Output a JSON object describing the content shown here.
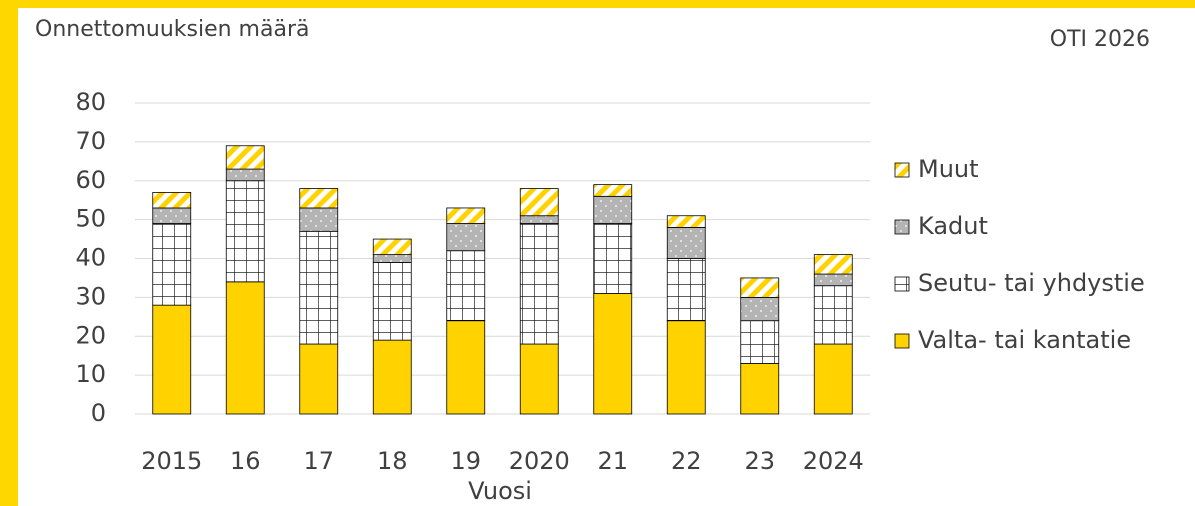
{
  "chart_data": {
    "type": "stacked_bar",
    "title": "Onnettomuuksien määrä",
    "subtitle": "OTI 2026",
    "x_label": "Vuosi",
    "categories": [
      "2015",
      "16",
      "17",
      "18",
      "19",
      "2020",
      "21",
      "22",
      "23",
      "2024"
    ],
    "series": [
      {
        "name": "Valta- tai kantatie",
        "color": "#ffd200",
        "values": [
          28,
          34,
          18,
          19,
          24,
          18,
          31,
          24,
          13,
          18
        ]
      },
      {
        "name": "Seutu- tai yhdystie",
        "color": "#ffffff",
        "values": [
          21,
          26,
          29,
          20,
          18,
          31,
          18,
          16,
          11,
          15
        ]
      },
      {
        "name": "Kadut",
        "color": "#b4b4b4",
        "values": [
          4,
          3,
          6,
          2,
          7,
          2,
          7,
          8,
          6,
          3
        ]
      },
      {
        "name": "Muut",
        "color": "#ffd200",
        "values": [
          4,
          6,
          5,
          4,
          4,
          7,
          3,
          3,
          5,
          5
        ]
      }
    ],
    "ylim": [
      0,
      80
    ],
    "yticks": [
      0,
      10,
      20,
      30,
      40,
      50,
      60,
      70,
      80
    ],
    "grid": true,
    "legend": "right"
  }
}
